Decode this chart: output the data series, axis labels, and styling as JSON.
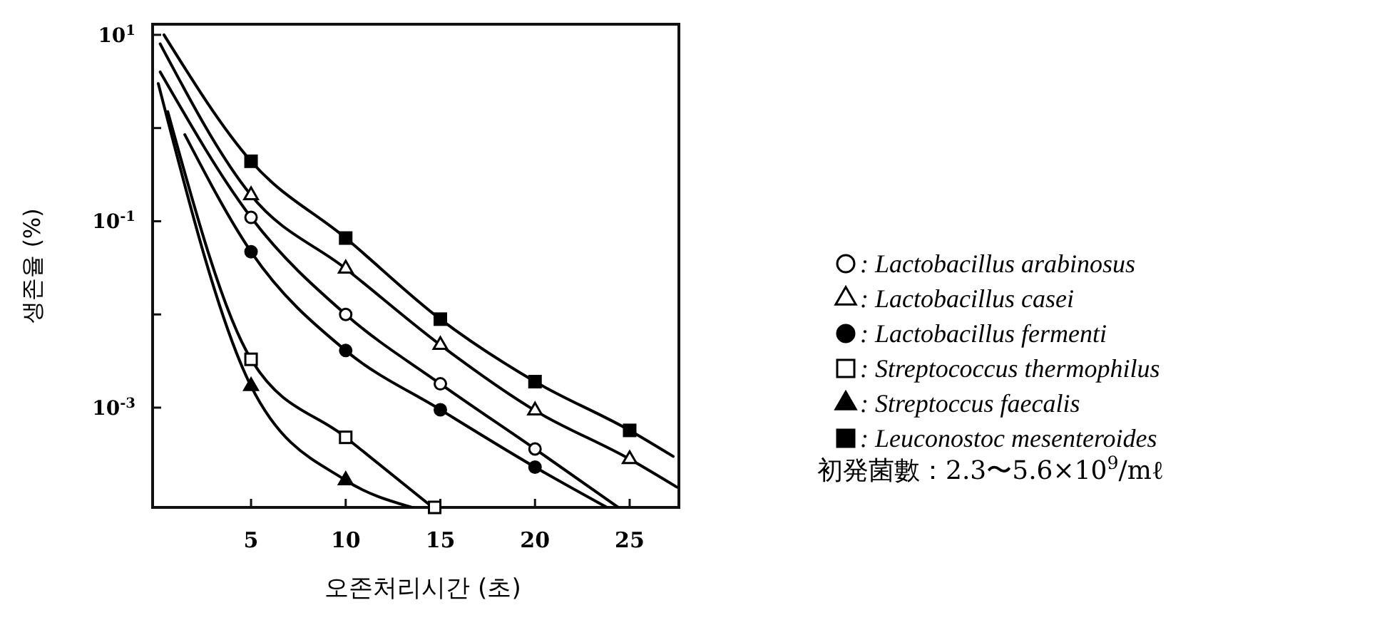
{
  "chart_data": {
    "type": "line",
    "xlabel": "오존처리시간 (초)",
    "ylabel": "생존율 (%)",
    "log": "y",
    "grid": false,
    "legend": "right",
    "xlim": [
      -0.2,
      27.6
    ],
    "xticks": [
      5,
      10,
      15,
      20,
      25
    ],
    "ylim": [
      8.5e-05,
      13
    ],
    "yticks": [
      {
        "value": 10,
        "label": "10$^{1}$"
      },
      {
        "value": 1,
        "label": null
      },
      {
        "value": 0.1,
        "label": "10$^{-1}$"
      },
      {
        "value": 0.01,
        "label": null
      },
      {
        "value": 0.001,
        "label": "10$^{-3}$"
      }
    ],
    "annotations": [
      "初発菌數：2.3〜5.6×10$^{9}$/mℓ"
    ],
    "series": [
      {
        "color": "#000000",
        "marker": "none",
        "x": [
          0.2,
          5,
          10,
          15,
          20,
          24.4
        ],
        "values": [
          4,
          0.11,
          0.01,
          0.0018,
          0.00036,
          8.5e-05
        ]
      },
      {
        "color": "#000000",
        "marker": "none",
        "x": [
          0.2,
          5,
          10,
          15,
          20,
          25,
          27.5
        ],
        "values": [
          8,
          0.19,
          0.031,
          0.0047,
          0.00093,
          0.00028,
          0.00014
        ]
      },
      {
        "color": "#000000",
        "marker": "none",
        "x": [
          1.5,
          5,
          10,
          15,
          20,
          23.8
        ],
        "values": [
          0.85,
          0.047,
          0.0041,
          0.00095,
          0.00023,
          8.5e-05
        ]
      },
      {
        "color": "#000000",
        "marker": "none",
        "x": [
          0.6,
          5,
          10,
          14.6
        ],
        "values": [
          1.5,
          0.0033,
          0.00048,
          8.5e-05
        ]
      },
      {
        "color": "#000000",
        "marker": "none",
        "x": [
          0.1,
          5,
          10,
          13.5
        ],
        "values": [
          3,
          0.0017,
          0.000166,
          8.5e-05
        ]
      },
      {
        "color": "#000000",
        "marker": "none",
        "x": [
          0.4,
          5,
          10,
          15,
          20,
          25,
          27.3
        ],
        "values": [
          10,
          0.44,
          0.066,
          0.0089,
          0.0019,
          0.00057,
          0.0003
        ]
      },
      {
        "type": "scatter",
        "name": ": Lactobacillus arabinosus",
        "color": "#ffffff",
        "marker": "circle",
        "x": [
          5,
          10,
          15,
          20
        ],
        "values": [
          0.11,
          0.01,
          0.0018,
          0.00036
        ]
      },
      {
        "type": "scatter",
        "name": ": Lactobacillus casei",
        "color": "#ffffff",
        "marker": "triangle",
        "x": [
          5,
          10,
          15,
          20,
          25
        ],
        "values": [
          0.19,
          0.031,
          0.0047,
          0.00093,
          0.00028
        ]
      },
      {
        "type": "scatter",
        "name": ": Lactobacillus fermenti",
        "color": "#000000",
        "marker": "circle",
        "x": [
          5,
          10,
          15,
          20
        ],
        "values": [
          0.047,
          0.0041,
          0.00095,
          0.00023
        ]
      },
      {
        "type": "scatter",
        "name": ": Streptococcus thermophilus",
        "color": "#ffffff",
        "marker": "square",
        "x": [
          5,
          10,
          14.7
        ],
        "values": [
          0.0033,
          0.00048,
          8.5e-05
        ]
      },
      {
        "type": "scatter",
        "name": ": Streptoccus faecalis",
        "color": "#000000",
        "marker": "triangle",
        "x": [
          5,
          10
        ],
        "values": [
          0.0017,
          0.000166
        ]
      },
      {
        "type": "scatter",
        "name": ": Leuconostoc mesenteroides",
        "color": "#000000",
        "marker": "square",
        "x": [
          5,
          10,
          15,
          20,
          25
        ],
        "values": [
          0.44,
          0.066,
          0.0089,
          0.0019,
          0.00057
        ]
      }
    ]
  }
}
